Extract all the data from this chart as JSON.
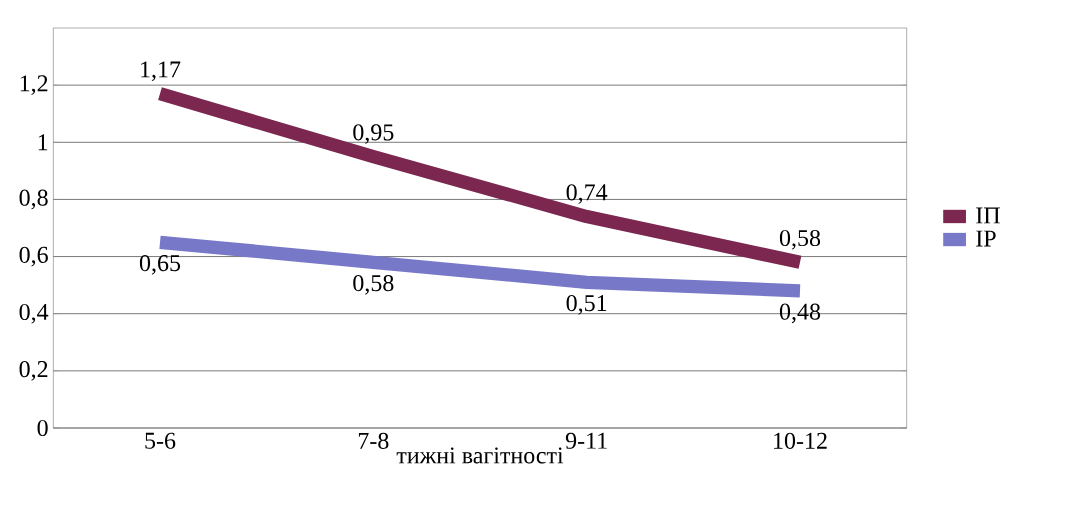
{
  "chart_data": {
    "type": "line",
    "xlabel": "тижні вагітності",
    "categories": [
      "5-6",
      "7-8",
      "9-11",
      "10-12"
    ],
    "series": [
      {
        "name": "ІП",
        "color": "#7b2750",
        "values": [
          1.17,
          0.95,
          0.74,
          0.58
        ],
        "value_labels": [
          "1,17",
          "0,95",
          "0,74",
          "0,58"
        ]
      },
      {
        "name": "ІР",
        "color": "#7878c8",
        "values": [
          0.65,
          0.58,
          0.51,
          0.48
        ],
        "value_labels": [
          "0,65",
          "0,58",
          "0,51",
          "0,48"
        ]
      }
    ],
    "ylim": [
      0,
      1.4
    ],
    "yticks": [
      0,
      {
        "value": 0.2,
        "label": "0,2"
      },
      {
        "value": 0.4,
        "label": "0,4"
      },
      {
        "value": 0.6,
        "label": "0,6"
      },
      {
        "value": 0.8,
        "label": "0,8"
      },
      1,
      {
        "value": 1.2,
        "label": "1,2"
      }
    ],
    "grid": "y",
    "legend": "right",
    "marker": "none",
    "line_style": "solid"
  }
}
